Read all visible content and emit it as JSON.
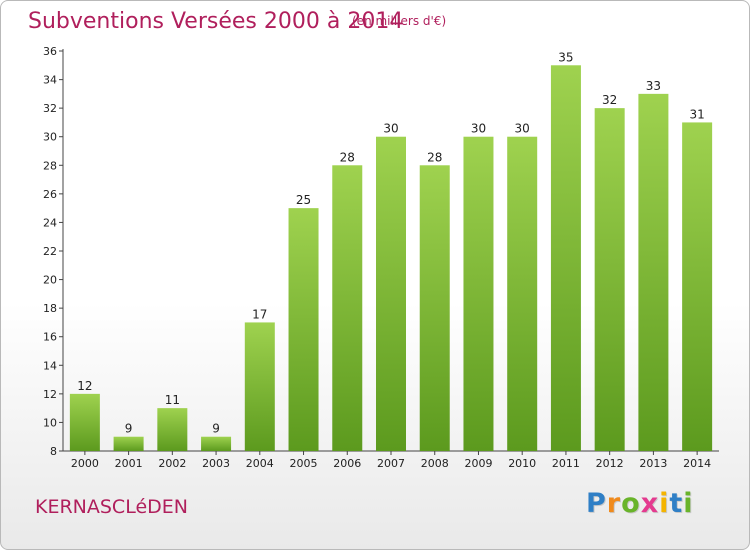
{
  "header": {
    "title": "Subventions Versées 2000 à 2014",
    "unit_note": "(en milliers d'€)"
  },
  "footer": {
    "commune": "KERNASCLéDEN",
    "logo_letters": [
      {
        "char": "P",
        "color": "#2f7fc6"
      },
      {
        "char": "r",
        "color": "#f08a1c"
      },
      {
        "char": "o",
        "color": "#69b42a"
      },
      {
        "char": "x",
        "color": "#e43a8f"
      },
      {
        "char": "i",
        "color": "#f4b400"
      },
      {
        "char": "t",
        "color": "#2f7fc6"
      },
      {
        "char": "i",
        "color": "#69b42a"
      }
    ]
  },
  "chart_data": {
    "type": "bar",
    "categories": [
      "2000",
      "2001",
      "2002",
      "2003",
      "2004",
      "2005",
      "2006",
      "2007",
      "2008",
      "2009",
      "2010",
      "2011",
      "2012",
      "2013",
      "2014"
    ],
    "values": [
      12,
      9,
      11,
      9,
      17,
      25,
      28,
      30,
      28,
      30,
      30,
      35,
      32,
      33,
      31
    ],
    "title": "Subventions Versées 2000 à 2014",
    "ylim": [
      8,
      36
    ],
    "yticks": [
      8,
      10,
      12,
      14,
      16,
      18,
      20,
      22,
      24,
      26,
      28,
      30,
      32,
      34,
      36
    ],
    "grid": false,
    "bar_color": "#8cc63f",
    "bar_color_dark": "#5c9a1e"
  }
}
